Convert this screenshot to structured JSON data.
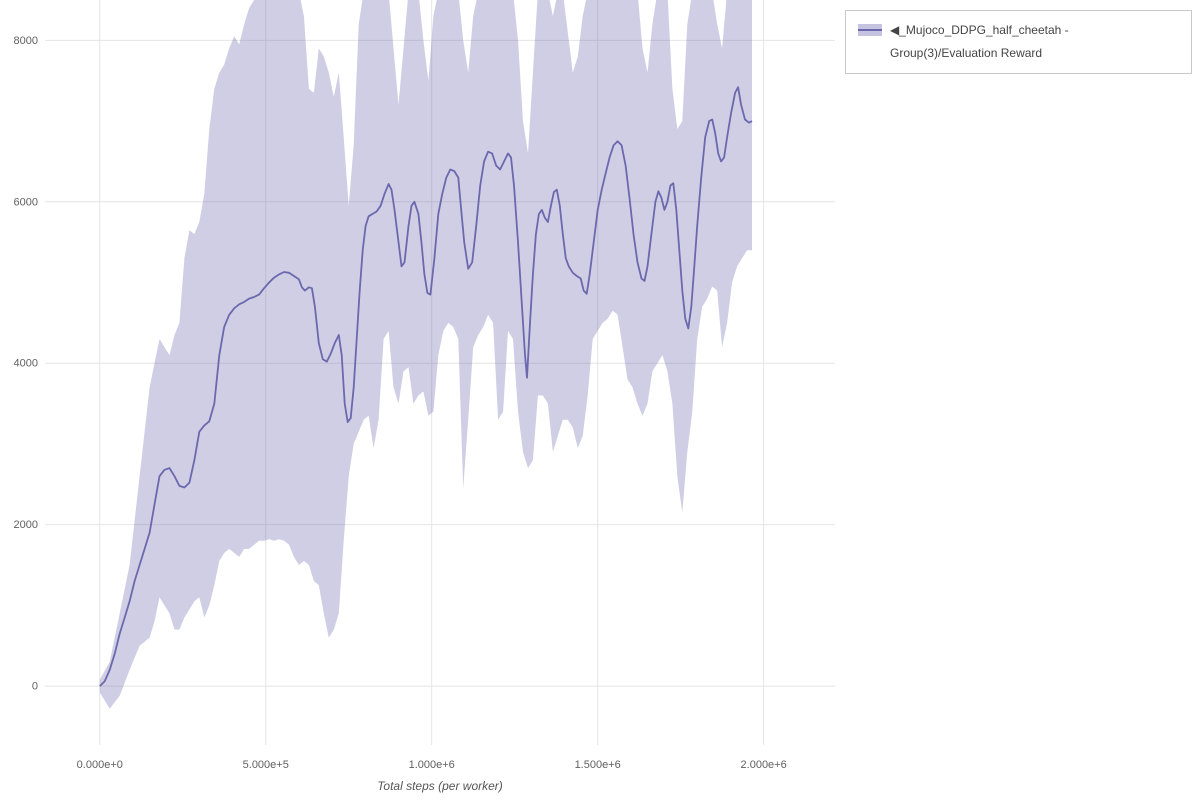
{
  "page": {
    "background": "#ffffff"
  },
  "legend": {
    "label": "◀_Mujoco_DDPG_half_cheetah - Group(3)/Evaluation Reward"
  },
  "chart_data": {
    "type": "line",
    "title": "",
    "xlabel": "Total steps (per worker)",
    "ylabel": "",
    "grid": true,
    "legend_position": "top-right",
    "xlim": [
      -165000,
      2215000
    ],
    "ylim": [
      -730,
      8500
    ],
    "x_ticks": [
      {
        "value": 0,
        "label": "0.000e+0"
      },
      {
        "value": 500000,
        "label": "5.000e+5"
      },
      {
        "value": 1000000,
        "label": "1.000e+6"
      },
      {
        "value": 1500000,
        "label": "1.500e+6"
      },
      {
        "value": 2000000,
        "label": "2.000e+6"
      }
    ],
    "y_ticks": [
      {
        "value": 0,
        "label": "0"
      },
      {
        "value": 2000,
        "label": "2000"
      },
      {
        "value": 4000,
        "label": "4000"
      },
      {
        "value": 6000,
        "label": "6000"
      },
      {
        "value": 8000,
        "label": "8000"
      }
    ],
    "colors": {
      "line": "#6b68ad",
      "band": "#6b68ad",
      "band_opacity": 0.32,
      "band_solid": "#c6c3e0",
      "grid": "#e4e4e4",
      "tick_text": "#606060"
    },
    "series": [
      {
        "name": "◀_Mujoco_DDPG_half_cheetah - Group(3)/Evaluation Reward",
        "x": [
          0,
          15000,
          30000,
          45000,
          60000,
          75000,
          90000,
          105000,
          120000,
          135000,
          150000,
          165000,
          180000,
          195000,
          210000,
          225000,
          240000,
          255000,
          270000,
          285000,
          300000,
          315000,
          330000,
          345000,
          360000,
          375000,
          390000,
          405000,
          420000,
          435000,
          450000,
          465000,
          480000,
          495000,
          510000,
          525000,
          540000,
          555000,
          570000,
          585000,
          600000,
          609000,
          618000,
          630000,
          639000,
          648000,
          660000,
          672000,
          684000,
          696000,
          708000,
          720000,
          729000,
          738000,
          747000,
          756000,
          765000,
          774000,
          783000,
          792000,
          801000,
          810000,
          822000,
          834000,
          846000,
          858000,
          870000,
          879000,
          888000,
          900000,
          909000,
          918000,
          930000,
          939000,
          948000,
          960000,
          969000,
          978000,
          987000,
          996000,
          1008000,
          1020000,
          1032000,
          1044000,
          1056000,
          1068000,
          1080000,
          1089000,
          1098000,
          1110000,
          1122000,
          1134000,
          1146000,
          1158000,
          1170000,
          1182000,
          1194000,
          1206000,
          1218000,
          1230000,
          1239000,
          1248000,
          1260000,
          1272000,
          1281000,
          1287000,
          1296000,
          1305000,
          1314000,
          1323000,
          1332000,
          1341000,
          1350000,
          1359000,
          1368000,
          1377000,
          1386000,
          1395000,
          1404000,
          1413000,
          1425000,
          1437000,
          1449000,
          1458000,
          1467000,
          1476000,
          1488000,
          1500000,
          1512000,
          1524000,
          1536000,
          1548000,
          1560000,
          1572000,
          1584000,
          1596000,
          1608000,
          1620000,
          1632000,
          1641000,
          1650000,
          1662000,
          1674000,
          1683000,
          1692000,
          1701000,
          1710000,
          1719000,
          1728000,
          1737000,
          1746000,
          1755000,
          1764000,
          1773000,
          1782000,
          1791000,
          1800000,
          1812000,
          1824000,
          1836000,
          1845000,
          1854000,
          1863000,
          1872000,
          1881000,
          1890000,
          1902000,
          1914000,
          1923000,
          1932000,
          1944000,
          1956000,
          1965000
        ],
        "y": [
          0,
          60,
          200,
          400,
          650,
          850,
          1050,
          1300,
          1500,
          1700,
          1900,
          2250,
          2600,
          2680,
          2700,
          2600,
          2480,
          2460,
          2520,
          2800,
          3150,
          3230,
          3280,
          3500,
          4100,
          4450,
          4600,
          4680,
          4730,
          4760,
          4800,
          4820,
          4850,
          4930,
          5000,
          5060,
          5100,
          5130,
          5120,
          5080,
          5040,
          4940,
          4900,
          4940,
          4930,
          4700,
          4250,
          4050,
          4020,
          4120,
          4250,
          4350,
          4100,
          3500,
          3270,
          3320,
          3700,
          4300,
          4900,
          5400,
          5700,
          5820,
          5850,
          5880,
          5950,
          6100,
          6220,
          6150,
          5900,
          5500,
          5200,
          5250,
          5700,
          5950,
          6000,
          5850,
          5500,
          5100,
          4870,
          4850,
          5300,
          5850,
          6100,
          6300,
          6400,
          6380,
          6300,
          5900,
          5500,
          5170,
          5250,
          5700,
          6200,
          6500,
          6620,
          6600,
          6450,
          6400,
          6500,
          6600,
          6550,
          6200,
          5500,
          4700,
          4100,
          3820,
          4500,
          5100,
          5600,
          5850,
          5900,
          5800,
          5750,
          5950,
          6120,
          6150,
          5950,
          5600,
          5300,
          5200,
          5120,
          5080,
          5050,
          4900,
          4860,
          5100,
          5500,
          5900,
          6150,
          6350,
          6550,
          6700,
          6750,
          6700,
          6450,
          6050,
          5600,
          5250,
          5050,
          5020,
          5200,
          5600,
          6000,
          6130,
          6050,
          5900,
          6000,
          6200,
          6230,
          5900,
          5400,
          4900,
          4550,
          4430,
          4700,
          5200,
          5700,
          6300,
          6800,
          7000,
          7020,
          6850,
          6600,
          6500,
          6550,
          6800,
          7100,
          7350,
          7420,
          7200,
          7020,
          6980,
          7000
        ],
        "band_x": [
          0,
          30000,
          60000,
          90000,
          120000,
          150000,
          165000,
          180000,
          195000,
          210000,
          225000,
          240000,
          255000,
          270000,
          285000,
          300000,
          315000,
          330000,
          345000,
          360000,
          375000,
          390000,
          405000,
          420000,
          435000,
          450000,
          465000,
          480000,
          495000,
          510000,
          525000,
          540000,
          555000,
          570000,
          585000,
          600000,
          615000,
          630000,
          645000,
          660000,
          675000,
          690000,
          705000,
          720000,
          735000,
          750000,
          765000,
          780000,
          795000,
          810000,
          825000,
          840000,
          855000,
          870000,
          885000,
          900000,
          915000,
          930000,
          945000,
          960000,
          975000,
          990000,
          1005000,
          1020000,
          1035000,
          1050000,
          1065000,
          1080000,
          1095000,
          1110000,
          1125000,
          1140000,
          1155000,
          1170000,
          1185000,
          1200000,
          1215000,
          1230000,
          1245000,
          1260000,
          1275000,
          1290000,
          1305000,
          1320000,
          1335000,
          1350000,
          1365000,
          1380000,
          1395000,
          1410000,
          1425000,
          1440000,
          1455000,
          1470000,
          1485000,
          1500000,
          1515000,
          1530000,
          1545000,
          1560000,
          1575000,
          1590000,
          1605000,
          1620000,
          1635000,
          1650000,
          1665000,
          1680000,
          1695000,
          1710000,
          1725000,
          1740000,
          1755000,
          1770000,
          1785000,
          1800000,
          1815000,
          1830000,
          1845000,
          1860000,
          1875000,
          1890000,
          1905000,
          1920000,
          1935000,
          1950000,
          1965000
        ],
        "band_lower": [
          -80,
          -280,
          -120,
          200,
          500,
          600,
          800,
          1100,
          1000,
          900,
          700,
          700,
          850,
          950,
          1050,
          1100,
          850,
          1000,
          1250,
          1550,
          1650,
          1700,
          1650,
          1600,
          1700,
          1700,
          1750,
          1800,
          1800,
          1820,
          1800,
          1820,
          1800,
          1750,
          1600,
          1500,
          1550,
          1500,
          1300,
          1250,
          900,
          600,
          700,
          900,
          1800,
          2600,
          3000,
          3150,
          3300,
          3350,
          2950,
          3300,
          4300,
          4400,
          3700,
          3500,
          3900,
          3950,
          3500,
          3600,
          3650,
          3350,
          3400,
          4100,
          4400,
          4500,
          4450,
          4300,
          2450,
          3300,
          4200,
          4350,
          4450,
          4600,
          4500,
          3300,
          3400,
          4400,
          4300,
          3400,
          2900,
          2700,
          2800,
          3600,
          3600,
          3500,
          2900,
          3100,
          3300,
          3300,
          3200,
          2950,
          3100,
          3600,
          4300,
          4400,
          4500,
          4550,
          4650,
          4600,
          4200,
          3800,
          3700,
          3500,
          3350,
          3500,
          3900,
          4000,
          4100,
          3900,
          3500,
          2600,
          2150,
          2900,
          3400,
          4300,
          4700,
          4800,
          4950,
          4900,
          4200,
          4500,
          5000,
          5200,
          5300,
          5400,
          5400
        ],
        "band_upper": [
          80,
          300,
          900,
          1500,
          2600,
          3700,
          4000,
          4300,
          4200,
          4100,
          4350,
          4500,
          5300,
          5650,
          5600,
          5750,
          6100,
          6900,
          7400,
          7600,
          7700,
          7900,
          8050,
          7950,
          8200,
          8400,
          8500,
          8600,
          8600,
          8600,
          8600,
          8600,
          8600,
          8600,
          8600,
          8600,
          8300,
          7400,
          7350,
          7900,
          7800,
          7600,
          7300,
          7600,
          6800,
          5950,
          6700,
          8200,
          8600,
          8600,
          8600,
          8600,
          8600,
          8600,
          7900,
          7200,
          7900,
          8600,
          8600,
          8600,
          8000,
          7500,
          8300,
          8600,
          8600,
          8600,
          8600,
          8600,
          8000,
          7600,
          8300,
          8600,
          8600,
          8600,
          8600,
          8600,
          8600,
          8600,
          8600,
          8000,
          7000,
          6600,
          7600,
          8600,
          8600,
          8600,
          8300,
          8600,
          8600,
          8100,
          7600,
          7800,
          8300,
          8600,
          8600,
          8600,
          8600,
          8600,
          8600,
          8600,
          8600,
          8600,
          8600,
          8600,
          7900,
          7600,
          8200,
          8600,
          8600,
          8600,
          7400,
          6900,
          7000,
          8200,
          8600,
          8600,
          8600,
          8600,
          8600,
          8200,
          7900,
          8600,
          8600,
          8600,
          8600,
          8600,
          8500
        ]
      }
    ]
  }
}
